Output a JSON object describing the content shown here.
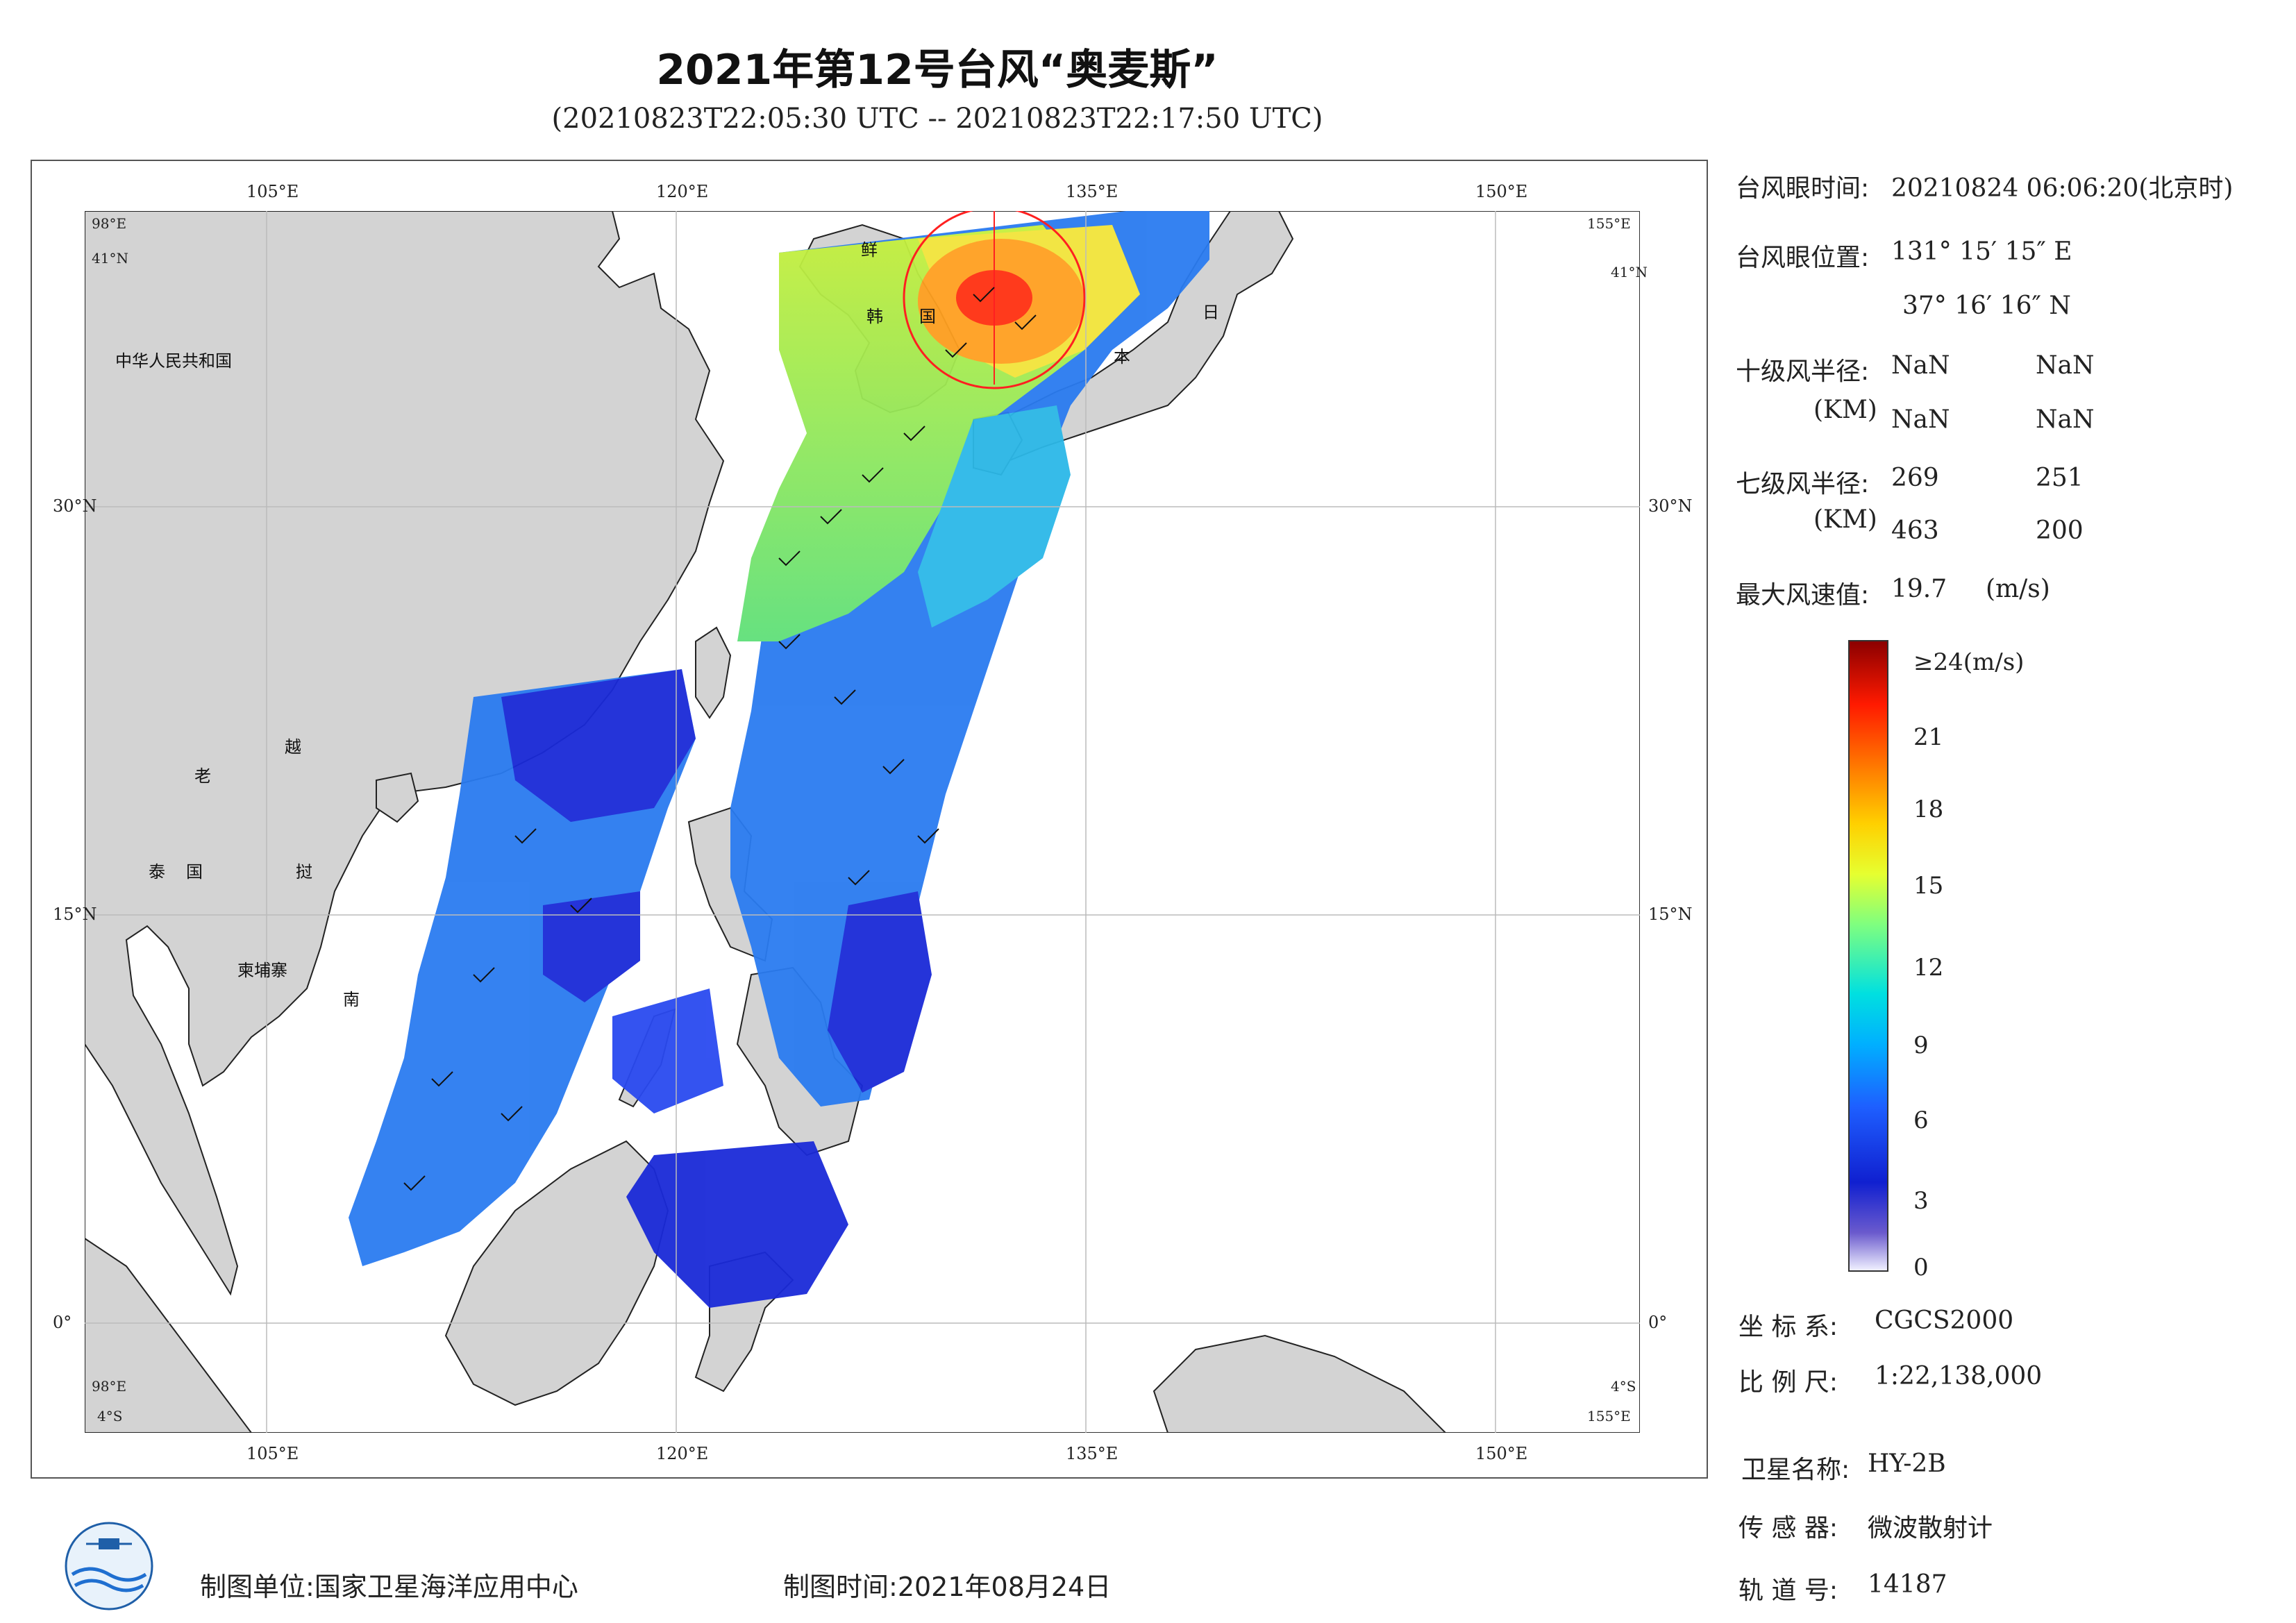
{
  "title": "2021年第12号台风“奥麦斯”",
  "subtitle": "(20210823T22:05:30 UTC -- 20210823T22:17:50 UTC)",
  "map": {
    "lon_ticks": [
      "105°E",
      "120°E",
      "135°E",
      "150°E"
    ],
    "lat_ticks": [
      "30°N",
      "15°N",
      "0°"
    ],
    "corners": {
      "top_left_lon": "98°E",
      "top_left_lat": "41°N",
      "top_right_lon": "155°E",
      "top_right_lat": "41°N",
      "bottom_left_lon": "98°E",
      "bottom_left_lat": "4°S",
      "bottom_right_lon": "155°E",
      "bottom_right_lat": "4°S"
    },
    "country_labels": {
      "china": "中华人民共和国",
      "korea_n": "鲜",
      "korea_s": "韩",
      "korea_s2": "国",
      "japan1": "日",
      "japan2": "本",
      "laos": "老",
      "vietnam1": "越",
      "vietnam2": "挝",
      "vietnam3": "南",
      "thailand": "泰",
      "thailand2": "国",
      "cambodia": "柬埔寨"
    },
    "land_color": "#d3d3d3",
    "sea_color": "#ffffff"
  },
  "info": {
    "eye_time_label": "台风眼时间:",
    "eye_time": "20210824 06:06:20(北京时)",
    "eye_pos_label": "台风眼位置:",
    "eye_lon": "131° 15′ 15″ E",
    "eye_lat": "37° 16′ 16″ N",
    "r10_label": "十级风半径:",
    "r10_unit": "(KM)",
    "r10_values": [
      "NaN",
      "NaN",
      "NaN",
      "NaN"
    ],
    "r7_label": "七级风半径:",
    "r7_unit": "(KM)",
    "r7_values": [
      "269",
      "251",
      "463",
      "200"
    ],
    "max_wind_label": "最大风速值:",
    "max_wind": "19.7",
    "max_wind_unit": "(m/s)"
  },
  "colorbar": {
    "top_label": "≥24(m/s)",
    "ticks": [
      "21",
      "18",
      "15",
      "12",
      "9",
      "6",
      "3",
      "0"
    ],
    "colors": [
      "#f0f0ff",
      "#6a5acd",
      "#0000cd",
      "#1e6fff",
      "#00c8ff",
      "#7fff7f",
      "#ffff00",
      "#ff8c00",
      "#ff0000",
      "#8b0000"
    ]
  },
  "meta": {
    "crs_label": "坐 标 系:",
    "crs": "CGCS2000",
    "scale_label": "比 例 尺:",
    "scale": "1:22,138,000",
    "sat_label": "卫星名称:",
    "sat": "HY-2B",
    "sensor_label": "传 感 器:",
    "sensor": "微波散射计",
    "orbit_label": "轨 道 号:",
    "orbit": "14187"
  },
  "footer": {
    "unit_label": "制图单位:",
    "unit": "国家卫星海洋应用中心",
    "date_label": "制图时间:",
    "date": "2021年08月24日"
  }
}
